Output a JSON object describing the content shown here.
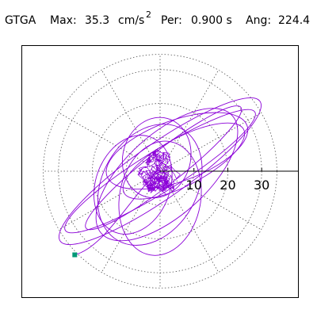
{
  "header": {
    "station": "GTGA",
    "max_label": "Max:",
    "max_value": "35.3",
    "max_unit": "cm/s",
    "max_unit_exp": "2",
    "per_label": "Per:",
    "per_value": "0.900 s",
    "ang_label": "Ang:",
    "ang_value": "224.4"
  },
  "chart_data": {
    "type": "scatter",
    "subtype": "polar-hodogram",
    "radial_ticks": [
      "10",
      "20",
      "30"
    ],
    "radial_tick_values": [
      10,
      20,
      30
    ],
    "radial_max": 40,
    "grid": true,
    "grid_style": "dotted",
    "axis_line": "positive-x",
    "spoke_angles_deg": [
      0,
      30,
      60,
      90,
      120,
      150,
      180,
      210,
      240,
      270,
      300,
      330
    ],
    "trace_color": "#8b00d8",
    "marker_color": "#009977",
    "marker_shape": "square",
    "peak_point": {
      "x": -25.2,
      "y": -24.7
    },
    "trace_loops": [
      {
        "a": 36,
        "b": 8,
        "angle": 35,
        "cx": 0,
        "cy": 0
      },
      {
        "a": 33,
        "b": 6,
        "angle": 32,
        "cx": 0,
        "cy": 0
      },
      {
        "a": 29,
        "b": 5,
        "angle": 38,
        "cx": 1,
        "cy": 1
      },
      {
        "a": 26,
        "b": 12,
        "angle": 42,
        "cx": 2,
        "cy": -1
      },
      {
        "a": 19,
        "b": 14,
        "angle": 60,
        "cx": -3,
        "cy": -4
      },
      {
        "a": 17,
        "b": 12,
        "angle": 80,
        "cx": 0,
        "cy": -8
      },
      {
        "a": 22,
        "b": 9,
        "angle": 20,
        "cx": 5,
        "cy": 6
      },
      {
        "a": 15,
        "b": 11,
        "angle": 70,
        "cx": -8,
        "cy": -4
      },
      {
        "a": 20,
        "b": 7,
        "angle": 28,
        "cx": 7,
        "cy": 3
      },
      {
        "a": 12,
        "b": 10,
        "angle": 75,
        "cx": -1,
        "cy": 4
      }
    ],
    "core_samples": 420,
    "core_radius": 5
  }
}
